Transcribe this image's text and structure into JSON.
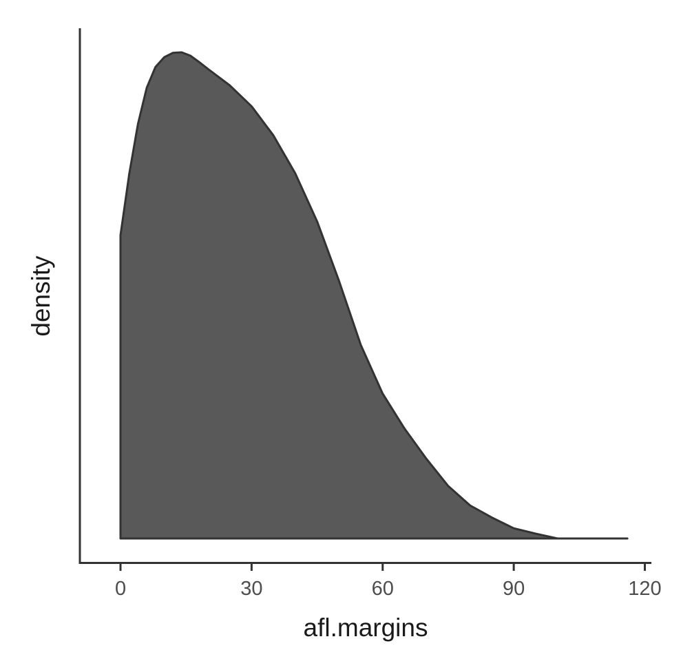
{
  "chart_data": {
    "type": "area",
    "title": "",
    "xlabel": "afl.margins",
    "ylabel": "density",
    "xlim": [
      -9.3,
      121.5
    ],
    "ylim": [
      0,
      1
    ],
    "x_ticks": [
      0,
      30,
      60,
      90,
      120
    ],
    "y_ticks": [],
    "grid": false,
    "legend": "none",
    "fill_color": "#595959",
    "line_color": "#333333",
    "series": [
      {
        "x": [
          0,
          2,
          4,
          6,
          8,
          10,
          12,
          14,
          16,
          18,
          20,
          25,
          30,
          35,
          40,
          45,
          50,
          55,
          60,
          65,
          70,
          75,
          80,
          85,
          90,
          95,
          100,
          105,
          110,
          116
        ],
        "y": [
          0.624,
          0.75,
          0.853,
          0.927,
          0.97,
          0.99,
          0.999,
          1.0,
          0.993,
          0.98,
          0.966,
          0.932,
          0.889,
          0.829,
          0.751,
          0.652,
          0.53,
          0.398,
          0.298,
          0.226,
          0.164,
          0.108,
          0.068,
          0.043,
          0.021,
          0.01,
          0.0,
          0.0,
          0.0,
          0.0
        ]
      }
    ]
  }
}
